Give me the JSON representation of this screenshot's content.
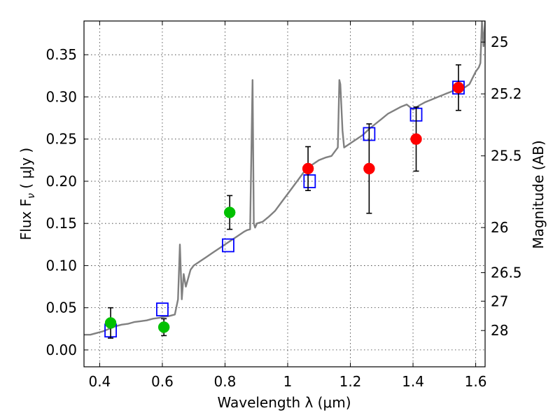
{
  "chart_data": {
    "type": "scatter",
    "xlabel": "Wavelength  λ (μm)",
    "ylabel": "Flux  F",
    "ylabel_sub": "ν",
    "ylabel_unit": "  ( μJy )",
    "ylabel_right": "Magnitude (AB)",
    "xlim": [
      0.35,
      1.63
    ],
    "ylim": [
      -0.02,
      0.39
    ],
    "grid": true,
    "x_ticks": [
      {
        "value": 0.4,
        "label": "0.4"
      },
      {
        "value": 0.6,
        "label": "0.6"
      },
      {
        "value": 0.8,
        "label": "0.8"
      },
      {
        "value": 1.0,
        "label": "1"
      },
      {
        "value": 1.2,
        "label": "1.2"
      },
      {
        "value": 1.4,
        "label": "1.4"
      },
      {
        "value": 1.6,
        "label": "1.6"
      }
    ],
    "y_ticks": [
      {
        "value": 0.0,
        "label": "0.00"
      },
      {
        "value": 0.05,
        "label": "0.05"
      },
      {
        "value": 0.1,
        "label": "0.10"
      },
      {
        "value": 0.15,
        "label": "0.15"
      },
      {
        "value": 0.2,
        "label": "0.20"
      },
      {
        "value": 0.25,
        "label": "0.25"
      },
      {
        "value": 0.3,
        "label": "0.30"
      },
      {
        "value": 0.35,
        "label": "0.35"
      }
    ],
    "right_ticks": [
      {
        "flux": 0.365,
        "label": "25"
      },
      {
        "flux": 0.3036,
        "label": "25.2"
      },
      {
        "flux": 0.2301,
        "label": "25.5"
      },
      {
        "flux": 0.1451,
        "label": "26"
      },
      {
        "flux": 0.0916,
        "label": "26.5"
      },
      {
        "flux": 0.0578,
        "label": "27"
      },
      {
        "flux": 0.023,
        "label": "28"
      }
    ],
    "series": [
      {
        "kind": "line",
        "color": "#808080",
        "x": [
          0.35,
          0.37,
          0.39,
          0.41,
          0.43,
          0.45,
          0.47,
          0.49,
          0.51,
          0.53,
          0.55,
          0.57,
          0.59,
          0.6,
          0.62,
          0.64,
          0.65,
          0.656,
          0.662,
          0.668,
          0.675,
          0.69,
          0.7,
          0.72,
          0.74,
          0.76,
          0.78,
          0.8,
          0.82,
          0.84,
          0.86,
          0.87,
          0.88,
          0.888,
          0.892,
          0.896,
          0.902,
          0.92,
          0.94,
          0.96,
          0.98,
          1.0,
          1.02,
          1.04,
          1.06,
          1.08,
          1.1,
          1.12,
          1.14,
          1.16,
          1.165,
          1.168,
          1.175,
          1.18,
          1.2,
          1.22,
          1.24,
          1.26,
          1.28,
          1.3,
          1.32,
          1.34,
          1.36,
          1.38,
          1.4,
          1.42,
          1.44,
          1.46,
          1.48,
          1.5,
          1.52,
          1.54,
          1.56,
          1.58,
          1.6,
          1.61,
          1.615,
          1.62,
          1.625,
          1.63
        ],
        "y": [
          0.018,
          0.018,
          0.02,
          0.022,
          0.025,
          0.028,
          0.03,
          0.031,
          0.033,
          0.034,
          0.035,
          0.037,
          0.038,
          0.039,
          0.04,
          0.042,
          0.06,
          0.125,
          0.06,
          0.09,
          0.075,
          0.095,
          0.1,
          0.105,
          0.11,
          0.115,
          0.12,
          0.125,
          0.13,
          0.135,
          0.14,
          0.142,
          0.143,
          0.32,
          0.15,
          0.145,
          0.15,
          0.152,
          0.158,
          0.165,
          0.175,
          0.185,
          0.195,
          0.205,
          0.215,
          0.22,
          0.225,
          0.228,
          0.23,
          0.24,
          0.32,
          0.315,
          0.26,
          0.24,
          0.245,
          0.25,
          0.255,
          0.262,
          0.268,
          0.274,
          0.28,
          0.284,
          0.288,
          0.291,
          0.285,
          0.29,
          0.294,
          0.297,
          0.3,
          0.303,
          0.306,
          0.309,
          0.31,
          0.315,
          0.33,
          0.335,
          0.34,
          0.39,
          0.36,
          0.39
        ]
      },
      {
        "kind": "squares",
        "color": "#0000ff",
        "x": [
          0.435,
          0.6,
          0.81,
          1.07,
          1.26,
          1.41,
          1.545
        ],
        "y": [
          0.023,
          0.048,
          0.124,
          0.2,
          0.256,
          0.279,
          0.311
        ]
      },
      {
        "kind": "points",
        "color": "#00c000",
        "x": [
          0.435,
          0.605,
          0.815
        ],
        "y": [
          0.032,
          0.027,
          0.163
        ],
        "err": [
          0.018,
          0.01,
          0.02
        ]
      },
      {
        "kind": "points",
        "color": "#ff0000",
        "x": [
          1.065,
          1.26,
          1.41,
          1.545
        ],
        "y": [
          0.215,
          0.215,
          0.25,
          0.311
        ],
        "err": [
          0.026,
          0.053,
          0.038,
          0.027
        ]
      }
    ]
  }
}
